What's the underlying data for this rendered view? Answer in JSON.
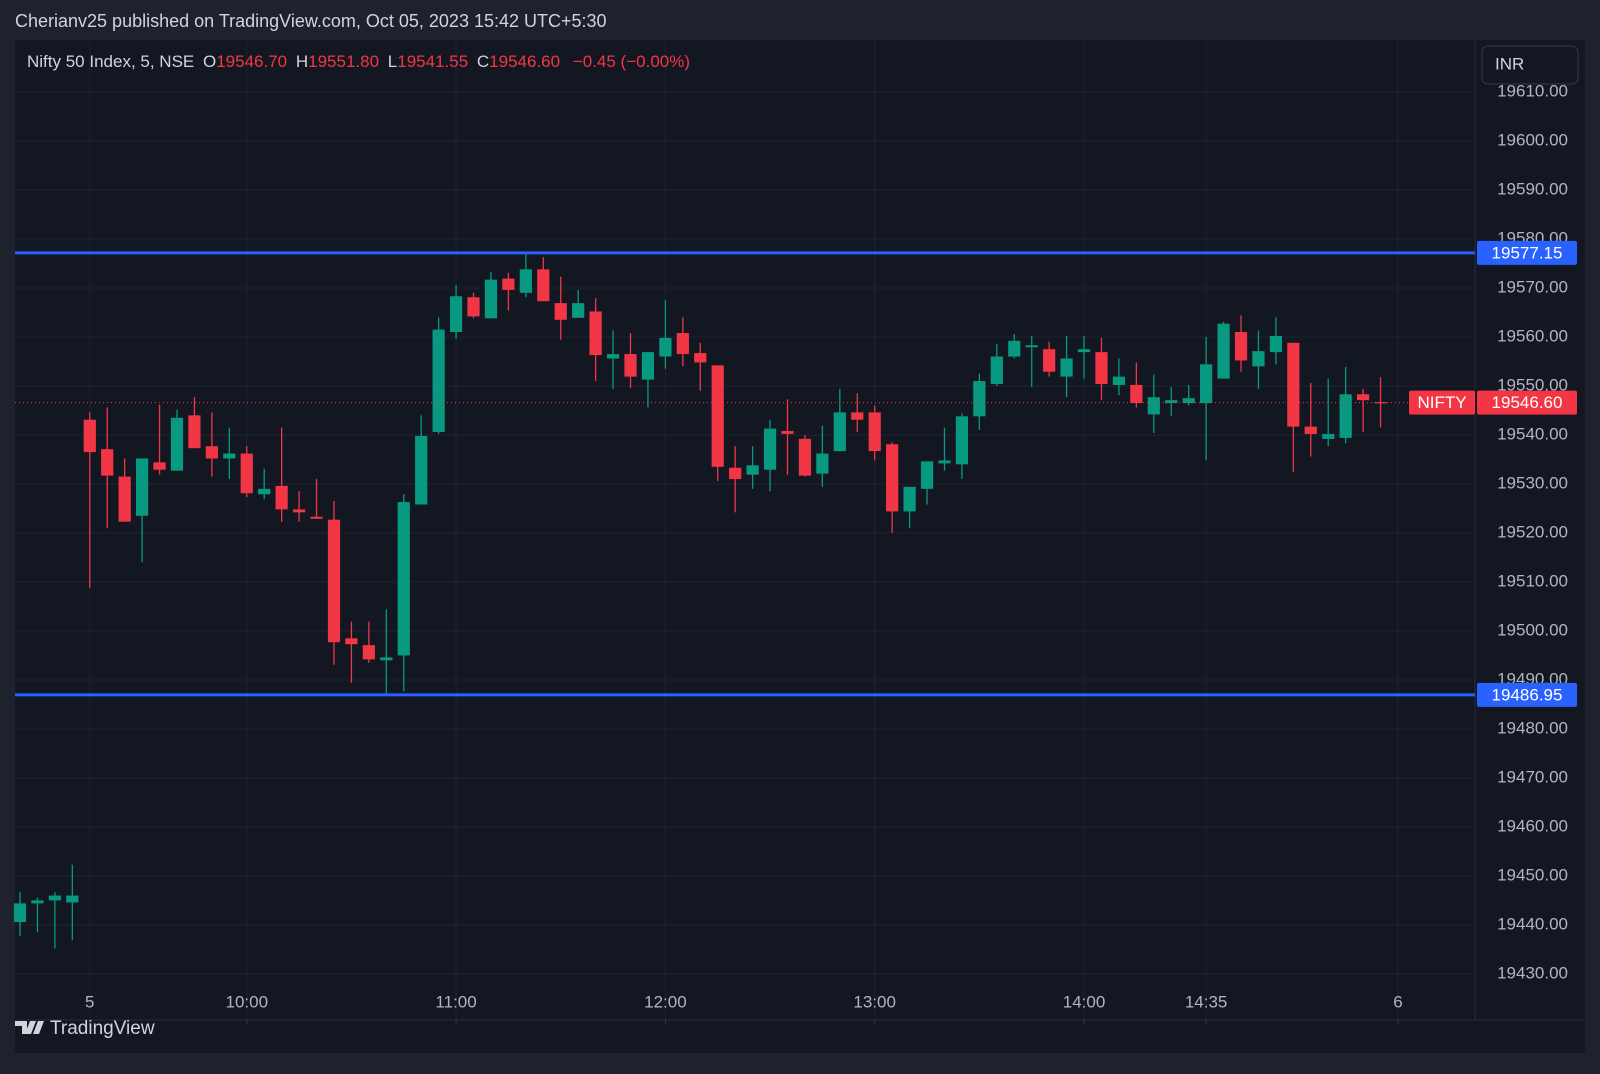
{
  "header": "Cherianv25 published on TradingView.com, Oct 05, 2023 15:42 UTC+5:30",
  "legend": {
    "symbol": "Nifty 50 Index, 5, NSE",
    "open_label": "O",
    "open": "19546.70",
    "high_label": "H",
    "high": "19551.80",
    "low_label": "L",
    "low": "19541.55",
    "close_label": "C",
    "close": "19546.60",
    "change": "−0.45 (−0.00%)"
  },
  "currency": "INR",
  "brand": "TradingView",
  "chart_data": {
    "type": "candlestick",
    "categories": [
      null,
      null,
      null,
      null,
      "5",
      null,
      null,
      null,
      null,
      null,
      null,
      null,
      null,
      "10:00",
      null,
      null,
      null,
      null,
      null,
      null,
      null,
      null,
      null,
      null,
      null,
      "11:00",
      null,
      null,
      null,
      null,
      null,
      null,
      null,
      null,
      null,
      null,
      null,
      "12:00",
      null,
      null,
      null,
      null,
      null,
      null,
      null,
      null,
      null,
      null,
      null,
      "13:00",
      null,
      null,
      null,
      null,
      null,
      null,
      null,
      null,
      null,
      null,
      null,
      "14:00",
      null,
      null,
      null,
      null,
      null,
      null,
      "14:35",
      null,
      null,
      null,
      null,
      null,
      null,
      null,
      null,
      null,
      null,
      "6"
    ],
    "open": [
      19440.6,
      19444.4,
      19445.0,
      19444.6,
      19543.1,
      19537.1,
      19531.5,
      19523.5,
      19534.4,
      19532.7,
      19544.0,
      19537.7,
      19535.2,
      19536.2,
      19527.9,
      19529.6,
      19524.8,
      19523.3,
      19522.7,
      19498.5,
      19497.1,
      19494.0,
      19495.0,
      19525.8,
      19540.6,
      19561.0,
      19568.1,
      19563.8,
      19571.9,
      19569.0,
      19573.8,
      19566.9,
      19563.9,
      19565.2,
      19555.6,
      19556.5,
      19551.3,
      19556.0,
      19560.8,
      19556.7,
      19554.2,
      19533.3,
      19531.9,
      19532.9,
      19540.8,
      19539.2,
      19532.1,
      19536.7,
      19544.6,
      19544.6,
      19538.1,
      19524.4,
      19529.0,
      19534.2,
      19534.0,
      19543.8,
      19550.4,
      19556.0,
      19557.9,
      19557.5,
      19551.9,
      19556.9,
      19556.9,
      19550.2,
      19550.2,
      19544.2,
      19546.5,
      19546.5,
      19546.5,
      19551.5,
      19561.0,
      19554.0,
      19556.9,
      19558.8,
      19541.7,
      19539.2,
      19539.4,
      19548.3,
      19546.7,
      null
    ],
    "high": [
      19446.7,
      19445.6,
      19446.7,
      19452.3,
      19544.6,
      19545.6,
      19535.2,
      19535.2,
      19546.2,
      19545.2,
      19547.7,
      19544.6,
      19541.5,
      19537.7,
      19533.1,
      19541.5,
      19528.5,
      19531.0,
      19526.5,
      19501.9,
      19501.9,
      19504.4,
      19527.9,
      19544.0,
      19564.0,
      19570.6,
      19569.0,
      19573.3,
      19573.1,
      19577.1,
      19576.3,
      19572.3,
      19569.6,
      19567.9,
      19561.3,
      19560.8,
      19556.9,
      19567.5,
      19564.0,
      19558.8,
      19554.2,
      19537.7,
      19537.7,
      19543.1,
      19547.3,
      19540.0,
      19541.9,
      19549.4,
      19548.5,
      19546.0,
      19538.5,
      19529.4,
      19534.6,
      19541.5,
      19544.4,
      19552.5,
      19558.5,
      19560.6,
      19560.2,
      19559.0,
      19560.2,
      19560.2,
      19559.8,
      19555.6,
      19554.8,
      19552.3,
      19549.8,
      19550.2,
      19560.0,
      19563.1,
      19564.4,
      19561.3,
      19564.0,
      19558.8,
      19550.6,
      19551.5,
      19553.9,
      19549.4,
      19551.8,
      null
    ],
    "low": [
      19437.7,
      19438.5,
      19435.2,
      19436.9,
      19508.8,
      19521.0,
      19522.3,
      19514.0,
      19531.9,
      19532.7,
      19537.3,
      19531.5,
      19531.0,
      19527.3,
      19526.9,
      19522.3,
      19522.3,
      19522.9,
      19493.1,
      19489.4,
      19493.5,
      19487.3,
      19487.7,
      19525.8,
      19540.2,
      19559.6,
      19563.8,
      19563.8,
      19565.4,
      19568.1,
      19567.3,
      19559.4,
      19563.9,
      19551.0,
      19549.4,
      19549.6,
      19545.6,
      19553.5,
      19554.0,
      19549.0,
      19530.6,
      19524.2,
      19529.0,
      19528.5,
      19531.9,
      19531.5,
      19529.4,
      19536.7,
      19540.6,
      19534.8,
      19520.0,
      19521.0,
      19525.8,
      19532.7,
      19531.0,
      19541.0,
      19550.0,
      19555.6,
      19549.8,
      19551.9,
      19547.7,
      19551.5,
      19547.1,
      19548.1,
      19545.6,
      19540.4,
      19543.9,
      19546.0,
      19534.8,
      19551.5,
      19552.9,
      19549.4,
      19554.4,
      19532.5,
      19535.6,
      19537.7,
      19538.3,
      19540.6,
      19541.55,
      null
    ],
    "close": [
      19444.4,
      19445.0,
      19446.0,
      19446.0,
      19536.5,
      19531.7,
      19522.3,
      19535.2,
      19532.9,
      19543.5,
      19537.3,
      19535.2,
      19536.2,
      19528.1,
      19529.0,
      19524.8,
      19524.2,
      19522.9,
      19497.7,
      19497.3,
      19494.2,
      19494.6,
      19526.3,
      19539.8,
      19561.5,
      19568.3,
      19564.2,
      19571.7,
      19569.6,
      19573.8,
      19567.3,
      19563.5,
      19566.9,
      19556.3,
      19556.5,
      19551.9,
      19556.9,
      19559.8,
      19556.5,
      19554.8,
      19533.5,
      19531.0,
      19533.8,
      19541.3,
      19540.2,
      19531.7,
      19536.2,
      19544.6,
      19543.1,
      19536.7,
      19524.4,
      19529.4,
      19534.6,
      19534.8,
      19543.8,
      19551.0,
      19556.0,
      19559.2,
      19558.3,
      19552.9,
      19555.6,
      19557.5,
      19550.4,
      19551.9,
      19546.5,
      19547.7,
      19547.1,
      19547.5,
      19554.4,
      19562.7,
      19555.2,
      19557.1,
      19560.2,
      19541.7,
      19540.2,
      19540.2,
      19548.3,
      19547.1,
      19546.6,
      null
    ],
    "up_color": "#089981",
    "down_color": "#f23645",
    "ylim": [
      19420.6,
      19620.6
    ],
    "yticks": [
      {
        "value": 19610,
        "label": "19610.00"
      },
      {
        "value": 19600,
        "label": "19600.00"
      },
      {
        "value": 19590,
        "label": "19590.00"
      },
      {
        "value": 19580,
        "label": "19580.00"
      },
      {
        "value": 19570,
        "label": "19570.00"
      },
      {
        "value": 19560,
        "label": "19560.00"
      },
      {
        "value": 19550,
        "label": "19550.00"
      },
      {
        "value": 19540,
        "label": "19540.00"
      },
      {
        "value": 19530,
        "label": "19530.00"
      },
      {
        "value": 19520,
        "label": "19520.00"
      },
      {
        "value": 19510,
        "label": "19510.00"
      },
      {
        "value": 19500,
        "label": "19500.00"
      },
      {
        "value": 19490,
        "label": "19490.00"
      },
      {
        "value": 19480,
        "label": "19480.00"
      },
      {
        "value": 19470,
        "label": "19470.00"
      },
      {
        "value": 19460,
        "label": "19460.00"
      },
      {
        "value": 19450,
        "label": "19450.00"
      },
      {
        "value": 19440,
        "label": "19440.00"
      },
      {
        "value": 19430,
        "label": "19430.00"
      }
    ],
    "grid": true,
    "hlines": [
      {
        "value": 19577.15,
        "color": "#2962ff"
      },
      {
        "value": 19486.95,
        "color": "#2962ff"
      }
    ],
    "last_price": {
      "name": "NIFTY",
      "value": {
        "value": 19546.6,
        "label": "19546.60"
      },
      "color": "#f23645"
    }
  }
}
